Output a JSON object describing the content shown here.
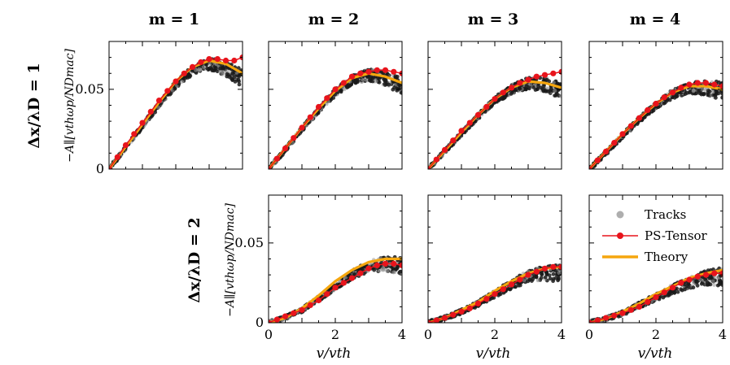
{
  "chart_data": {
    "type": "line",
    "layout": "2x4 grid of subplots",
    "column_titles": [
      "m = 1",
      "m = 2",
      "m = 3",
      "m = 4"
    ],
    "row_titles": [
      "Δx/λD = 1",
      "Δx/λD = 2"
    ],
    "ylabel": "−A∥[vthωp/NDmac]",
    "xlabel": "v/vth",
    "xlim": [
      0,
      4
    ],
    "ylim": [
      0,
      0.08
    ],
    "xticks": [
      "0",
      "2",
      "4"
    ],
    "yticks": [
      "0",
      "0.05"
    ],
    "legend": {
      "placement": "inside bottom-right panel, top-left",
      "entries": [
        "Tracks",
        "PS-Tensor",
        "Theory"
      ]
    },
    "colors": {
      "tracks": "#1a1a1a",
      "tracks_scatter": "#9a9a9a",
      "ps_tensor": "#e8141c",
      "theory": "#f5a60e"
    },
    "panels": [
      {
        "row": 0,
        "col": 0,
        "series": [
          {
            "name": "Tracks",
            "x": [
              0,
              0.5,
              1,
              1.5,
              2,
              2.5,
              3,
              3.5,
              4
            ],
            "values": [
              0,
              0.0135,
              0.027,
              0.0405,
              0.053,
              0.062,
              0.066,
              0.063,
              0.057
            ]
          },
          {
            "name": "PS-Tensor",
            "x": [
              0,
              0.25,
              0.5,
              0.75,
              1,
              1.25,
              1.5,
              1.75,
              2,
              2.25,
              2.5,
              2.75,
              3,
              3.25,
              3.5,
              3.75,
              4
            ],
            "values": [
              0,
              0.0075,
              0.015,
              0.022,
              0.029,
              0.036,
              0.043,
              0.049,
              0.055,
              0.06,
              0.064,
              0.067,
              0.069,
              0.069,
              0.068,
              0.068,
              0.07
            ]
          },
          {
            "name": "Theory",
            "x": [
              0,
              0.5,
              1,
              1.5,
              2,
              2.5,
              3,
              3.5,
              4
            ],
            "values": [
              0,
              0.014,
              0.028,
              0.042,
              0.055,
              0.064,
              0.068,
              0.066,
              0.06
            ]
          }
        ]
      },
      {
        "row": 0,
        "col": 1,
        "series": [
          {
            "name": "Tracks",
            "x": [
              0,
              0.5,
              1,
              1.5,
              2,
              2.5,
              3,
              3.5,
              4
            ],
            "values": [
              0,
              0.012,
              0.025,
              0.037,
              0.048,
              0.056,
              0.059,
              0.057,
              0.052
            ]
          },
          {
            "name": "PS-Tensor",
            "x": [
              0,
              0.25,
              0.5,
              0.75,
              1,
              1.25,
              1.5,
              1.75,
              2,
              2.25,
              2.5,
              2.75,
              3,
              3.25,
              3.5,
              3.75,
              4
            ],
            "values": [
              0,
              0.0065,
              0.013,
              0.0195,
              0.026,
              0.0325,
              0.039,
              0.0445,
              0.05,
              0.054,
              0.058,
              0.06,
              0.061,
              0.062,
              0.062,
              0.061,
              0.06
            ]
          },
          {
            "name": "Theory",
            "x": [
              0,
              0.5,
              1,
              1.5,
              2,
              2.5,
              3,
              3.5,
              4
            ],
            "values": [
              0,
              0.013,
              0.026,
              0.038,
              0.049,
              0.057,
              0.06,
              0.058,
              0.054
            ]
          }
        ]
      },
      {
        "row": 0,
        "col": 2,
        "series": [
          {
            "name": "Tracks",
            "x": [
              0,
              0.5,
              1,
              1.5,
              2,
              2.5,
              3,
              3.5,
              4
            ],
            "values": [
              0,
              0.011,
              0.022,
              0.033,
              0.043,
              0.05,
              0.054,
              0.053,
              0.049
            ]
          },
          {
            "name": "PS-Tensor",
            "x": [
              0,
              0.25,
              0.5,
              0.75,
              1,
              1.25,
              1.5,
              1.75,
              2,
              2.25,
              2.5,
              2.75,
              3,
              3.25,
              3.5,
              3.75,
              4
            ],
            "values": [
              0,
              0.006,
              0.012,
              0.018,
              0.024,
              0.029,
              0.034,
              0.039,
              0.044,
              0.048,
              0.051,
              0.054,
              0.056,
              0.058,
              0.059,
              0.06,
              0.061
            ]
          },
          {
            "name": "Theory",
            "x": [
              0,
              0.5,
              1,
              1.5,
              2,
              2.5,
              3,
              3.5,
              4
            ],
            "values": [
              0,
              0.0115,
              0.023,
              0.034,
              0.044,
              0.051,
              0.055,
              0.054,
              0.051
            ]
          }
        ]
      },
      {
        "row": 0,
        "col": 3,
        "series": [
          {
            "name": "Tracks",
            "x": [
              0,
              0.5,
              1,
              1.5,
              2,
              2.5,
              3,
              3.5,
              4
            ],
            "values": [
              0,
              0.01,
              0.021,
              0.031,
              0.04,
              0.047,
              0.051,
              0.051,
              0.049
            ]
          },
          {
            "name": "PS-Tensor",
            "x": [
              0,
              0.25,
              0.5,
              0.75,
              1,
              1.25,
              1.5,
              1.75,
              2,
              2.25,
              2.5,
              2.75,
              3,
              3.25,
              3.5,
              3.75,
              4
            ],
            "values": [
              0,
              0.0055,
              0.011,
              0.0165,
              0.022,
              0.027,
              0.032,
              0.037,
              0.041,
              0.045,
              0.048,
              0.051,
              0.053,
              0.054,
              0.054,
              0.053,
              0.052
            ]
          },
          {
            "name": "Theory",
            "x": [
              0,
              0.5,
              1,
              1.5,
              2,
              2.5,
              3,
              3.5,
              4
            ],
            "values": [
              0,
              0.011,
              0.022,
              0.032,
              0.041,
              0.048,
              0.052,
              0.052,
              0.05
            ]
          }
        ]
      },
      {
        "row": 1,
        "col": 1,
        "series": [
          {
            "name": "Tracks",
            "x": [
              0,
              0.5,
              1,
              1.5,
              2,
              2.5,
              3,
              3.5,
              4
            ],
            "values": [
              0,
              0.003,
              0.008,
              0.015,
              0.023,
              0.03,
              0.035,
              0.037,
              0.036
            ]
          },
          {
            "name": "PS-Tensor",
            "x": [
              0,
              0.25,
              0.5,
              0.75,
              1,
              1.25,
              1.5,
              1.75,
              2,
              2.25,
              2.5,
              2.75,
              3,
              3.25,
              3.5,
              3.75,
              4
            ],
            "values": [
              0,
              0.002,
              0.004,
              0.006,
              0.008,
              0.011,
              0.014,
              0.018,
              0.022,
              0.025,
              0.028,
              0.031,
              0.034,
              0.036,
              0.037,
              0.037,
              0.036
            ]
          },
          {
            "name": "Theory",
            "x": [
              0,
              0.5,
              1,
              1.5,
              2,
              2.5,
              3,
              3.5,
              4
            ],
            "values": [
              0,
              0.003,
              0.009,
              0.017,
              0.026,
              0.033,
              0.038,
              0.04,
              0.04
            ]
          }
        ]
      },
      {
        "row": 1,
        "col": 2,
        "series": [
          {
            "name": "Tracks",
            "x": [
              0,
              0.5,
              1,
              1.5,
              2,
              2.5,
              3,
              3.5,
              4
            ],
            "values": [
              0,
              0.003,
              0.007,
              0.012,
              0.018,
              0.024,
              0.029,
              0.031,
              0.031
            ]
          },
          {
            "name": "PS-Tensor",
            "x": [
              0,
              0.25,
              0.5,
              0.75,
              1,
              1.25,
              1.5,
              1.75,
              2,
              2.25,
              2.5,
              2.75,
              3,
              3.25,
              3.5,
              3.75,
              4
            ],
            "values": [
              0,
              0.0015,
              0.003,
              0.005,
              0.007,
              0.009,
              0.012,
              0.015,
              0.018,
              0.021,
              0.024,
              0.027,
              0.03,
              0.032,
              0.034,
              0.035,
              0.035
            ]
          },
          {
            "name": "Theory",
            "x": [
              0,
              0.5,
              1,
              1.5,
              2,
              2.5,
              3,
              3.5,
              4
            ],
            "values": [
              0,
              0.003,
              0.008,
              0.013,
              0.02,
              0.026,
              0.031,
              0.034,
              0.035
            ]
          }
        ]
      },
      {
        "row": 1,
        "col": 3,
        "series": [
          {
            "name": "Tracks",
            "x": [
              0,
              0.5,
              1,
              1.5,
              2,
              2.5,
              3,
              3.5,
              4
            ],
            "values": [
              0,
              0.0025,
              0.006,
              0.011,
              0.016,
              0.021,
              0.025,
              0.028,
              0.029
            ]
          },
          {
            "name": "PS-Tensor",
            "x": [
              0,
              0.25,
              0.5,
              0.75,
              1,
              1.25,
              1.5,
              1.75,
              2,
              2.25,
              2.5,
              2.75,
              3,
              3.25,
              3.5,
              3.75,
              4
            ],
            "values": [
              0,
              0.0015,
              0.003,
              0.0045,
              0.006,
              0.008,
              0.01,
              0.013,
              0.016,
              0.019,
              0.022,
              0.025,
              0.027,
              0.029,
              0.03,
              0.031,
              0.031
            ]
          },
          {
            "name": "Theory",
            "x": [
              0,
              0.5,
              1,
              1.5,
              2,
              2.5,
              3,
              3.5,
              4
            ],
            "values": [
              0,
              0.0025,
              0.007,
              0.012,
              0.018,
              0.023,
              0.028,
              0.031,
              0.033
            ]
          }
        ]
      }
    ]
  }
}
